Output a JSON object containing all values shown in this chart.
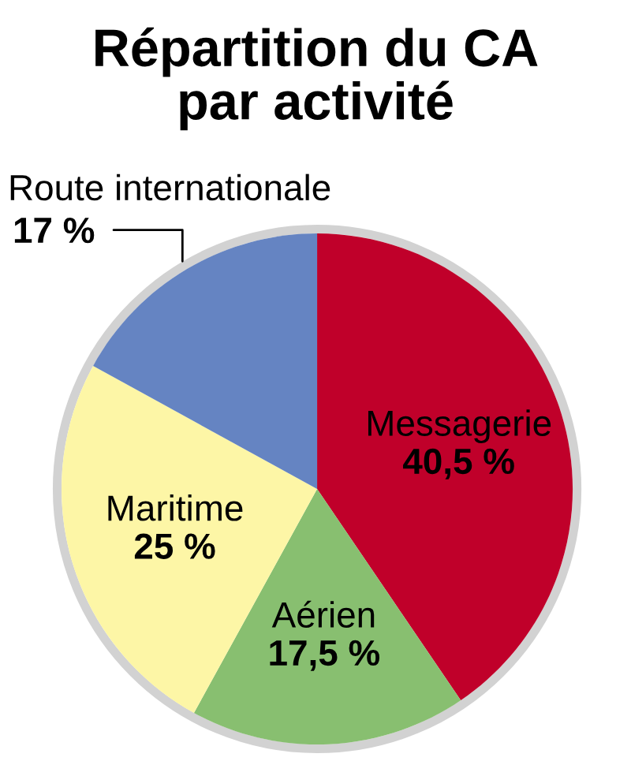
{
  "chart_data": {
    "type": "pie",
    "title": "Répartition du CA\npar activité",
    "categories": [
      "Messagerie",
      "Aérien",
      "Maritime",
      "Route internationale"
    ],
    "values": [
      40.5,
      17.5,
      25,
      17
    ],
    "colors": [
      "#c0002a",
      "#88bf70",
      "#fdf6a6",
      "#6584c2"
    ],
    "value_labels": [
      "40,5 %",
      "17,5 %",
      "25 %",
      "17 %"
    ]
  }
}
